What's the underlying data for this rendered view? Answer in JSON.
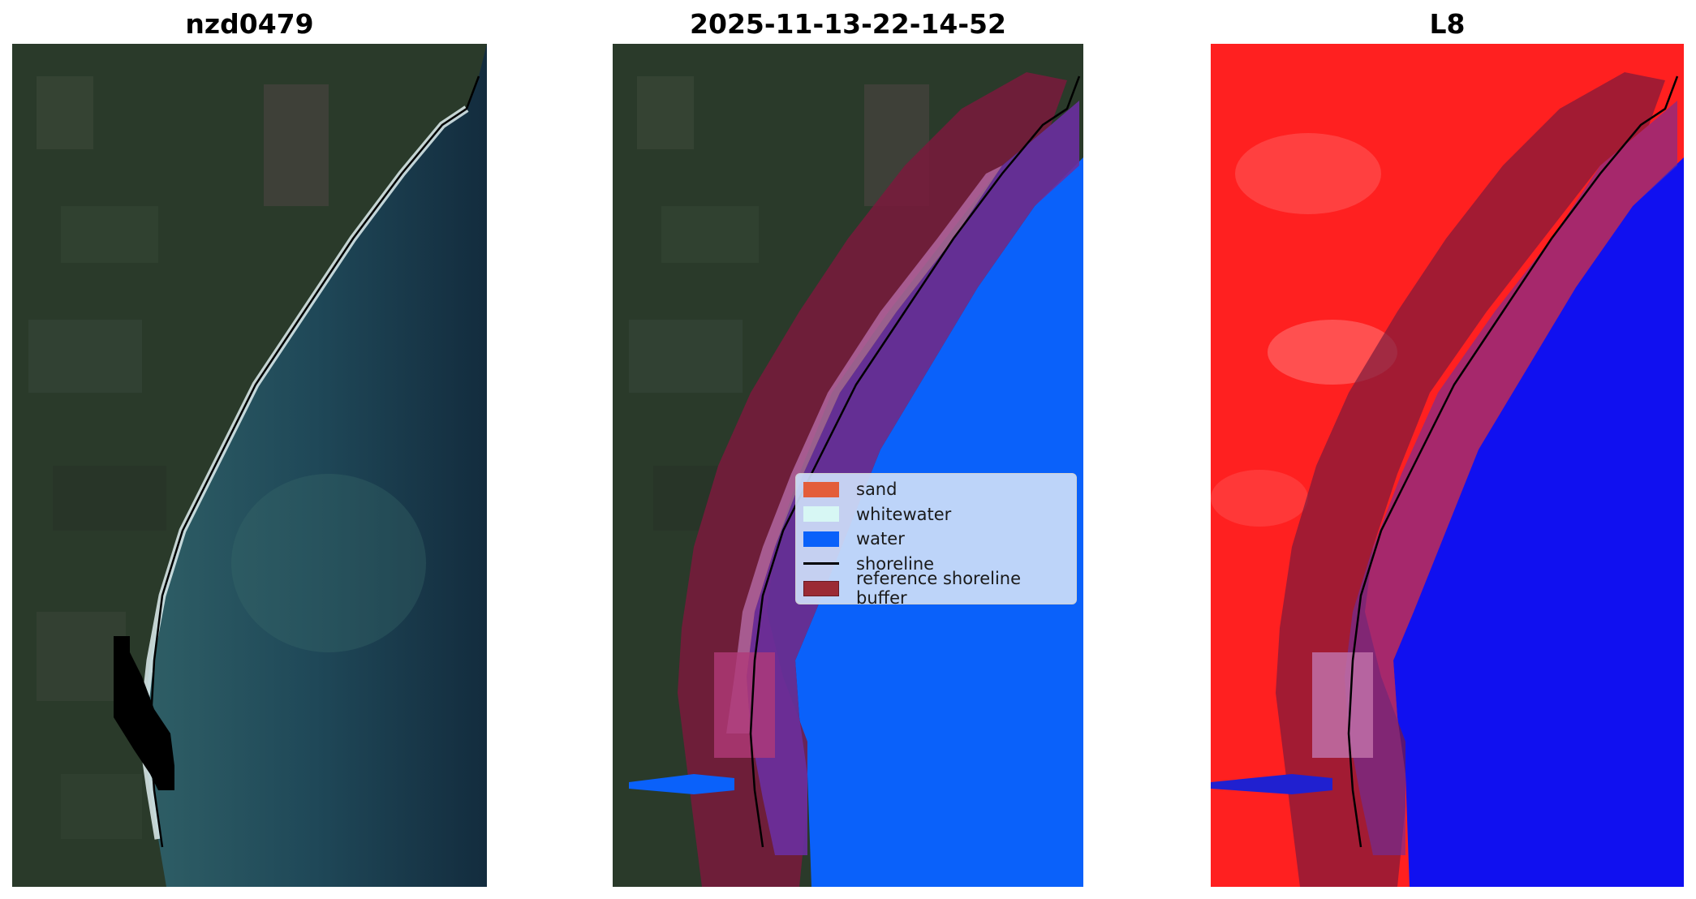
{
  "panels": [
    {
      "title": "nzd0479"
    },
    {
      "title": "2025-11-13-22-14-52"
    },
    {
      "title": "L8"
    }
  ],
  "legend": {
    "items": [
      {
        "label": "sand",
        "color": "#e35d3a",
        "kind": "patch"
      },
      {
        "label": "whitewater",
        "color": "#d7f7f4",
        "kind": "patch"
      },
      {
        "label": "water",
        "color": "#0a61fa",
        "kind": "patch"
      },
      {
        "label": "shoreline",
        "color": "#000000",
        "kind": "line"
      },
      {
        "label": "reference shoreline buffer",
        "color": "#9b2b35",
        "kind": "patch"
      }
    ]
  },
  "colors": {
    "land": "#2a3a2a",
    "ocean": "#1b3a4e",
    "surf": "#e8f2f4",
    "water_class": "#0a61fa",
    "buffer": "#7a1a3c",
    "sand_band": "#b56aa6",
    "ratio_land": "#ff2020",
    "ratio_water": "#1010f0"
  }
}
